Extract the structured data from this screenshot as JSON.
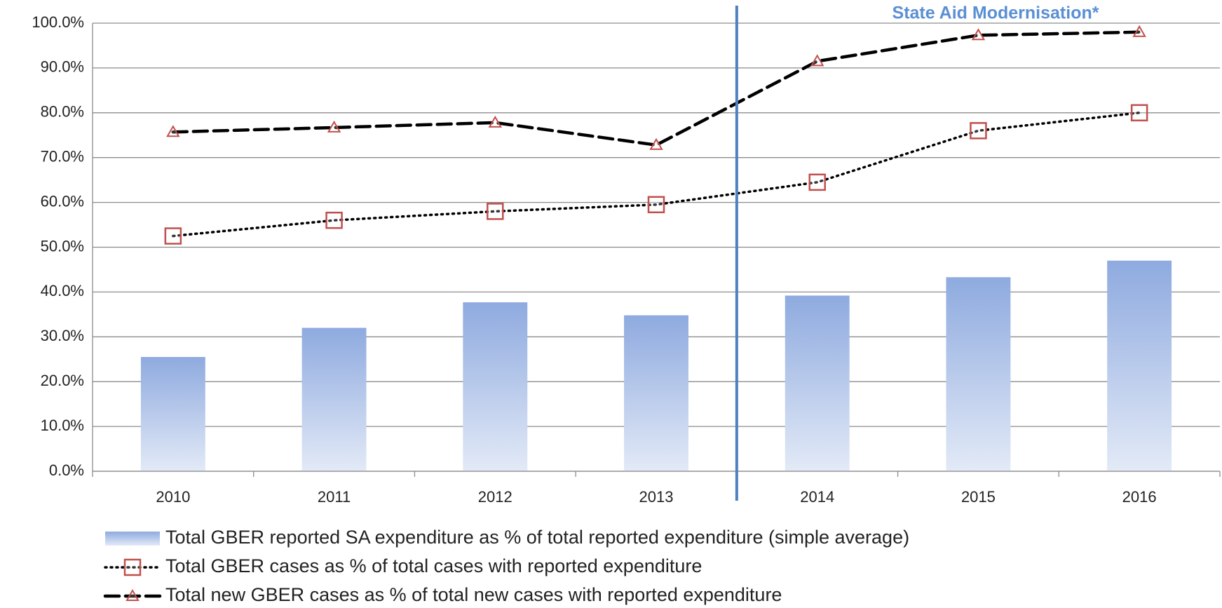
{
  "chart_data": {
    "type": "bar",
    "annotation": "State Aid Modernisation*",
    "categories": [
      "2010",
      "2011",
      "2012",
      "2013",
      "2014",
      "2015",
      "2016"
    ],
    "series": [
      {
        "name": "Total GBER reported SA expenditure as % of total reported expenditure (simple average)",
        "type": "bar",
        "color": "#95b3e0",
        "values": [
          25.5,
          32,
          37.7,
          34.8,
          39.2,
          43.3,
          47
        ]
      },
      {
        "name": "Total GBER cases as % of total cases with reported expenditure",
        "type": "line",
        "dash": "dotted",
        "marker": "square",
        "color": "#000000",
        "marker_color": "#c0504d",
        "values": [
          52.5,
          56,
          58,
          59.5,
          64.5,
          76,
          80
        ]
      },
      {
        "name": "Total new GBER cases as % of total new cases with reported expenditure",
        "type": "line",
        "dash": "dashed",
        "marker": "triangle",
        "color": "#000000",
        "marker_color": "#c0504d",
        "values": [
          75.7,
          76.7,
          77.8,
          72.8,
          91.5,
          97.3,
          98
        ]
      }
    ],
    "ylim": [
      0,
      100
    ],
    "yticks": [
      {
        "value": 0,
        "label": "0.0%"
      },
      {
        "value": 10,
        "label": "10.0%"
      },
      {
        "value": 20,
        "label": "20.0%"
      },
      {
        "value": 30,
        "label": "30.0%"
      },
      {
        "value": 40,
        "label": "40.0%"
      },
      {
        "value": 50,
        "label": "50.0%"
      },
      {
        "value": 60,
        "label": "60.0%"
      },
      {
        "value": 70,
        "label": "70.0%"
      },
      {
        "value": 80,
        "label": "80.0%"
      },
      {
        "value": 90,
        "label": "90.0%"
      },
      {
        "value": 100,
        "label": "100.0%"
      }
    ],
    "grid": true,
    "legend": "bottom"
  }
}
